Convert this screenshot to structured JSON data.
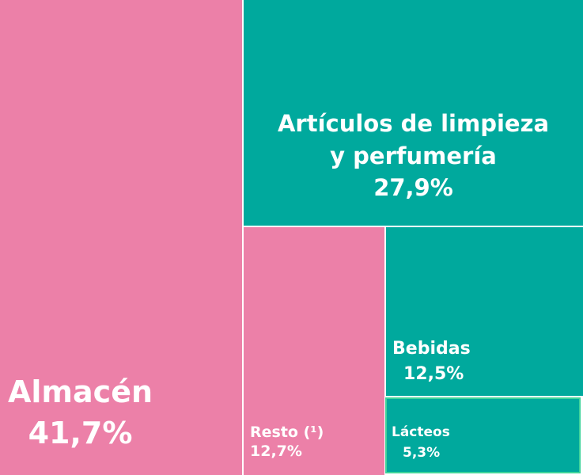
{
  "chart_data": {
    "type": "treemap",
    "items": [
      {
        "label": "Almacén",
        "value": 41.7,
        "value_label": "41,7%",
        "color": "#ec80a8"
      },
      {
        "label": "Artículos de limpieza y perfumería",
        "value": 27.9,
        "value_label": "27,9%",
        "color": "#00a99d"
      },
      {
        "label": "Resto (¹)",
        "value": 12.7,
        "value_label": "12,7%",
        "color": "#ec80a8"
      },
      {
        "label": "Bebidas",
        "value": 12.5,
        "value_label": "12,5%",
        "color": "#00a99d"
      },
      {
        "label": "Lácteos",
        "value": 5.3,
        "value_label": "5,3%",
        "color": "#00a99d",
        "border_color": "#3fd49a"
      }
    ]
  }
}
